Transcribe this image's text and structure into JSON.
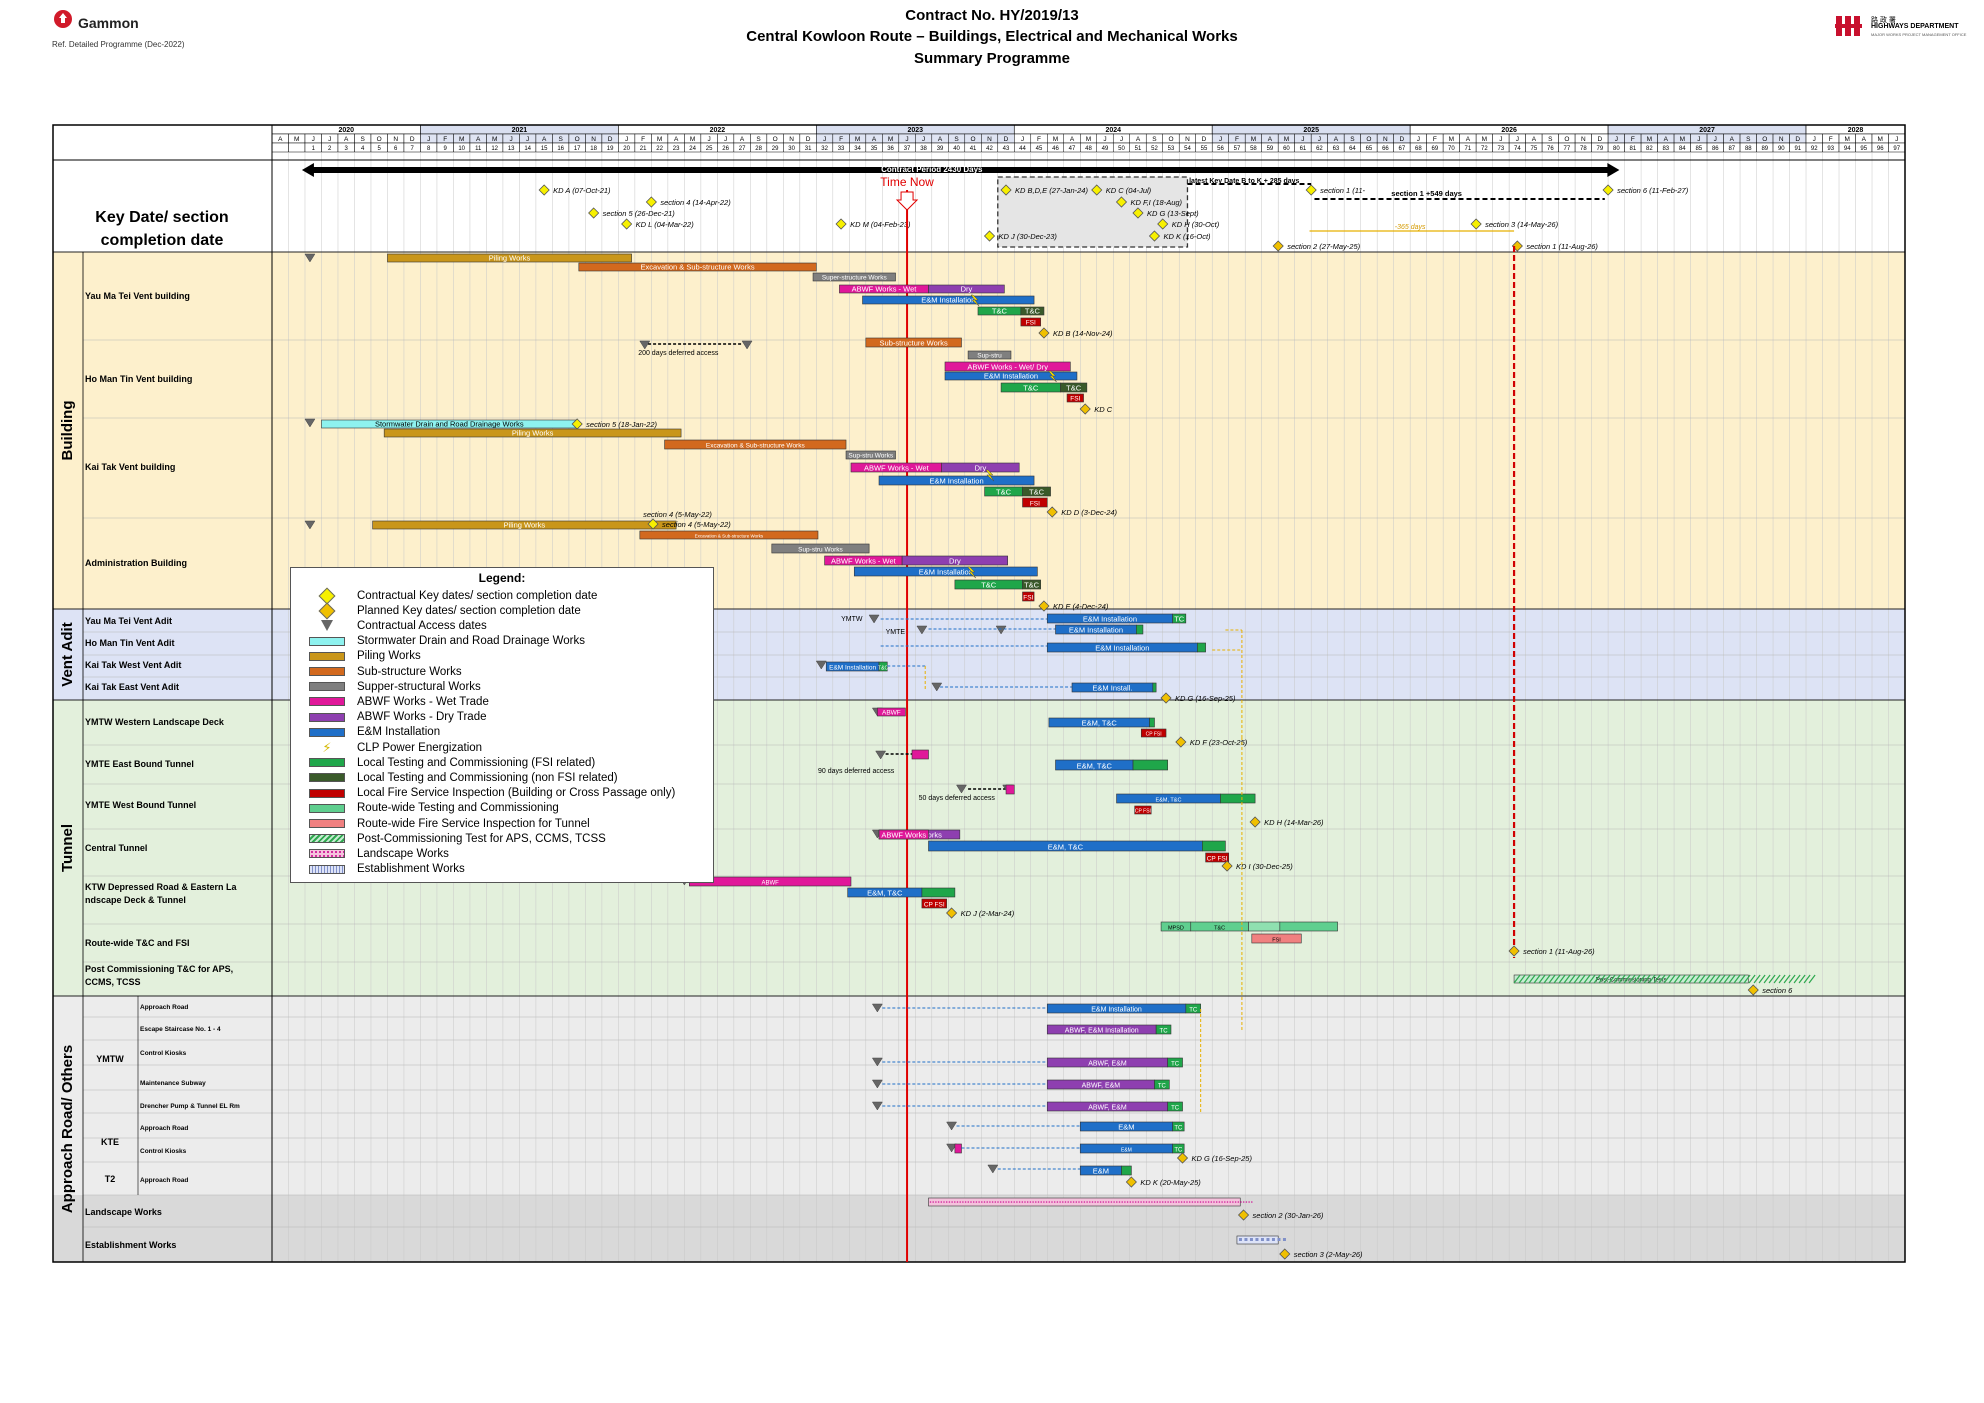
{
  "header": {
    "company": "Gammon",
    "ref": "Ref. Detailed Programme (Dec-2022)",
    "contract": "Contract No. HY/2019/13",
    "project": "Central Kowloon Route – Buildings, Electrical and Mechanical Works",
    "programme": "Summary Programme",
    "dept_cn": "路 政 署",
    "dept_en": "HIGHWAYS DEPARTMENT",
    "dept_sub": "MAJOR WORKS PROJECT MANAGEMENT OFFICE"
  },
  "timeline": {
    "years": [
      {
        "label": "2020",
        "start": 1,
        "end": 9
      },
      {
        "label": "2021",
        "start": 10,
        "end": 21
      },
      {
        "label": "2022",
        "start": 22,
        "end": 33
      },
      {
        "label": "2023",
        "start": 34,
        "end": 45
      },
      {
        "label": "2024",
        "start": 46,
        "end": 57
      },
      {
        "label": "2025",
        "start": 58,
        "end": 69
      },
      {
        "label": "2026",
        "start": 70,
        "end": 81
      },
      {
        "label": "2027",
        "start": 82,
        "end": 93
      },
      {
        "label": "2028",
        "start": 94,
        "end": 99
      }
    ],
    "months": [
      "A",
      "M",
      "J",
      "J",
      "A",
      "S",
      "O",
      "N",
      "D",
      "J",
      "F",
      "M",
      "A",
      "M",
      "J",
      "J",
      "A",
      "S",
      "O",
      "N",
      "D",
      "J",
      "F",
      "M",
      "A",
      "M",
      "J",
      "J",
      "A",
      "S",
      "O",
      "N",
      "D",
      "J",
      "F",
      "M",
      "A",
      "M",
      "J",
      "J",
      "A",
      "S",
      "O",
      "N",
      "D",
      "J",
      "F",
      "M",
      "A",
      "M",
      "J",
      "J",
      "A",
      "S",
      "O",
      "N",
      "D",
      "J",
      "F",
      "M",
      "A",
      "M",
      "J",
      "J",
      "A",
      "S",
      "O",
      "N",
      "D",
      "J",
      "F",
      "M",
      "A",
      "M",
      "J",
      "J",
      "A",
      "S",
      "O",
      "N",
      "D",
      "J",
      "F",
      "M",
      "A",
      "M",
      "J",
      "J",
      "A",
      "S",
      "O",
      "N",
      "D",
      "J",
      "F",
      "M",
      "A",
      "M",
      "J"
    ],
    "numbers": [
      "",
      "",
      "1",
      "2",
      "3",
      "4",
      "5",
      "6",
      "7",
      "8",
      "9",
      "10",
      "11",
      "12",
      "13",
      "14",
      "15",
      "16",
      "17",
      "18",
      "19",
      "20",
      "21",
      "22",
      "23",
      "24",
      "25",
      "26",
      "27",
      "28",
      "29",
      "30",
      "31",
      "32",
      "33",
      "34",
      "35",
      "36",
      "37",
      "38",
      "39",
      "40",
      "41",
      "42",
      "43",
      "44",
      "45",
      "46",
      "47",
      "48",
      "49",
      "50",
      "51",
      "52",
      "53",
      "54",
      "55",
      "56",
      "57",
      "58",
      "59",
      "60",
      "61",
      "62",
      "63",
      "64",
      "65",
      "66",
      "67",
      "68",
      "69",
      "70",
      "71",
      "72",
      "73",
      "74",
      "75",
      "76",
      "77",
      "78",
      "79",
      "80",
      "81",
      "82",
      "83",
      "84",
      "85",
      "86",
      "87",
      "88",
      "89",
      "90",
      "91",
      "92",
      "93",
      "94",
      "95",
      "96",
      "97"
    ],
    "contract_period": "Contract Period 2430 Days",
    "time_now": "Time Now",
    "time_now_month": 38.5
  },
  "sections": [
    {
      "label": "Key Date/ section completion date",
      "rows": [
        "keydate"
      ]
    },
    {
      "label": "Building",
      "rows": [
        "Yau Ma Tei Vent building",
        "Ho Man Tin Vent building",
        "Kai Tak Vent building",
        "Administration Building"
      ]
    },
    {
      "label": "Vent  Adit",
      "rows": [
        "Yau Ma Tei Vent Adit",
        "Ho Man Tin Vent Adit",
        "Kai Tak West Vent Adit",
        "Kai Tak East Vent Adit"
      ]
    },
    {
      "label": "Tunnel",
      "rows": [
        "YMTW Western Landscape Deck",
        "YMTE East Bound Tunnel",
        "YMTE West Bound Tunnel",
        "Central Tunnel",
        "KTW Depressed Road & Eastern Landscape Deck & Tunnel",
        "Route-wide T&C and FSI",
        "Post Commissioning T&C for APS, CCMS, TCSS"
      ]
    },
    {
      "label": "Approach Road/ Others",
      "rows": [
        "Approach Road",
        "Escape Staircase No. 1 - 4",
        "Control Kiosks",
        "Maintenance Subway",
        "Drencher Pump & Tunnel EL Rm",
        "Approach Road",
        "Control Kiosks",
        "Approach Road",
        "Landscape Works",
        "Establishment Works"
      ]
    }
  ],
  "subgroups": [
    "YMTW",
    "KTE",
    "T2"
  ],
  "key_dates": [
    {
      "label": "KD A (07-Oct-21)",
      "m": 16.5,
      "row": 0
    },
    {
      "label": "section 4 (14-Apr-22)",
      "m": 23,
      "row": 1
    },
    {
      "label": "section 5 (26-Dec-21)",
      "m": 19.5,
      "row": 2
    },
    {
      "label": "KD L (04-Mar-22)",
      "m": 21.5,
      "row": 3
    },
    {
      "label": "KD M (04-Feb-23)",
      "m": 34.5,
      "row": 3
    },
    {
      "label": "KD B,D,E (27-Jan-24)",
      "m": 44.5,
      "row": 0
    },
    {
      "label": "KD C (04-Jul)",
      "m": 50,
      "row": 0
    },
    {
      "label": "KD F,I (18-Aug)",
      "m": 51.5,
      "row": 1
    },
    {
      "label": "KD G (13-Sept)",
      "m": 52.5,
      "row": 2
    },
    {
      "label": "KD H (30-Oct)",
      "m": 54,
      "row": 3
    },
    {
      "label": "KD J (30-Dec-23)",
      "m": 43.5,
      "row": 4
    },
    {
      "label": "KD K (16-Oct)",
      "m": 53.5,
      "row": 4
    },
    {
      "label": "section 1 (11-",
      "m": 63,
      "row": 0
    },
    {
      "label": "section 2 (27-May-25)",
      "m": 61,
      "row": 5
    },
    {
      "label": "section 3 (14-May-26)",
      "m": 73,
      "row": 3
    },
    {
      "label": "section 1 (11-Aug-26)",
      "m": 75.5,
      "row": 5
    },
    {
      "label": "section 6 (11-Feb-27)",
      "m": 81,
      "row": 0
    }
  ],
  "kd_notes": {
    "latest": "latest Key Date B to K + 285 days",
    "section1": "section 1 +549 days",
    "minus": "-365 days"
  },
  "notes": {
    "deferred200": "200 days deferred access",
    "deferred90": "90 days deferred access",
    "deferred50": "50 days deferred access",
    "ymtw": "YMTW",
    "ymte": "YMTE"
  },
  "bar_labels": {
    "piling": "Piling Works",
    "exc": "Excavation & Sub-structure Works",
    "superstruct": "Super-structure Works",
    "abwf_wet": "ABWF Works - Wet",
    "dry": "Dry",
    "em": "E&M Installation",
    "tc": "T&C",
    "fsi": "FSI",
    "substruct": "Sub-structure Works",
    "supstru": "Sup-stru",
    "abwf_wetdry": "ABWF Works - Wet/ Dry",
    "storm": "Stormwater Drain and Road Drainage Works",
    "supstruworks": "Sup-stru Works",
    "em_tc": "E&M, T&C",
    "cpfsi": "CP FSI",
    "abwf": "ABWF",
    "abwf_works": "ABWF Works",
    "em_install": "E&M Install.",
    "abwf_em": "ABWF, E&M",
    "abwf_em_inst": "ABWF, E&M Installation",
    "em_only": "E&M",
    "post_comm": "Post-Commissioning Tests",
    "tcshort": "TC",
    "mpsd": "MPSD"
  },
  "milestone_labels": {
    "kdb": "KD B (14-Nov-24)",
    "kdc": "KD C",
    "s5": "section 5 (18-Jan-22)",
    "kdd": "KD D (3-Dec-24)",
    "s4": "section 4 (5-May-22)",
    "kde": "KD E (4-Dec-24)",
    "kdg": "KD G (16-Sep-25)",
    "kdf": "KD F (23-Oct-25)",
    "kdh": "KD H (14-Mar-26)",
    "kdi": "KD I (30-Dec-25)",
    "kdj": "KD J (2-Mar-24)",
    "s1": "section 1 (11-Aug-26)",
    "s6": "section 6",
    "kdg2": "KD G (16-Sep-25)",
    "kdk": "KD K (20-May-25)",
    "s2": "section 2 (30-Jan-26)",
    "s3": "section 3 (2-May-26)"
  },
  "legend": {
    "title": "Legend:",
    "items": [
      {
        "label": "Contractual Key dates/ section completion date",
        "kind": "diamond",
        "color": "#f7f000"
      },
      {
        "label": "Planned Key dates/ section completion date",
        "kind": "diamond",
        "color": "#f0c000"
      },
      {
        "label": "Contractual Access dates",
        "kind": "triangle",
        "color": "#666666"
      },
      {
        "label": "Stormwater Drain and Road Drainage Works",
        "kind": "bar",
        "color": "#8ef2ef"
      },
      {
        "label": "Piling Works",
        "kind": "bar",
        "color": "#c9961a"
      },
      {
        "label": "Sub-structure Works",
        "kind": "bar",
        "color": "#d2691e"
      },
      {
        "label": "Supper-structural Works",
        "kind": "bar",
        "color": "#7f7f7f"
      },
      {
        "label": "ABWF Works - Wet Trade",
        "kind": "bar",
        "color": "#e0189a"
      },
      {
        "label": "ABWF Works - Dry Trade",
        "kind": "bar",
        "color": "#8e3fb0"
      },
      {
        "label": "E&M Installation",
        "kind": "bar",
        "color": "#1f6fc8"
      },
      {
        "label": "CLP Power Energization",
        "kind": "bolt",
        "color": "#f7e000"
      },
      {
        "label": "Local Testing and Commissioning (FSI related)",
        "kind": "bar",
        "color": "#1fa64a"
      },
      {
        "label": "Local Testing and Commissioning (non FSI related)",
        "kind": "bar",
        "color": "#3a5a2a"
      },
      {
        "label": "Local Fire Service Inspection (Building or Cross Passage only)",
        "kind": "bar",
        "color": "#c00000"
      },
      {
        "label": "Route-wide Testing and Commissioning",
        "kind": "bar",
        "color": "#5fcf8f"
      },
      {
        "label": "Route-wide Fire Service Inspection for Tunnel",
        "kind": "bar",
        "color": "#f08080"
      },
      {
        "label": "Post-Commissioning Test for APS, CCMS, TCSS",
        "kind": "hatch",
        "color": "#2fa84f"
      },
      {
        "label": "Landscape Works",
        "kind": "dots",
        "color": "#d0209a"
      },
      {
        "label": "Establishment Works",
        "kind": "checker",
        "color": "#8090c8"
      }
    ]
  },
  "colors": {
    "building_bg": "#fdf0cc",
    "vent_bg": "#dde3f5",
    "tunnel_bg": "#e3f0dc",
    "other_bg": "#ececec",
    "other_bg2": "#d9d9d9",
    "time_now": "#e00000"
  }
}
